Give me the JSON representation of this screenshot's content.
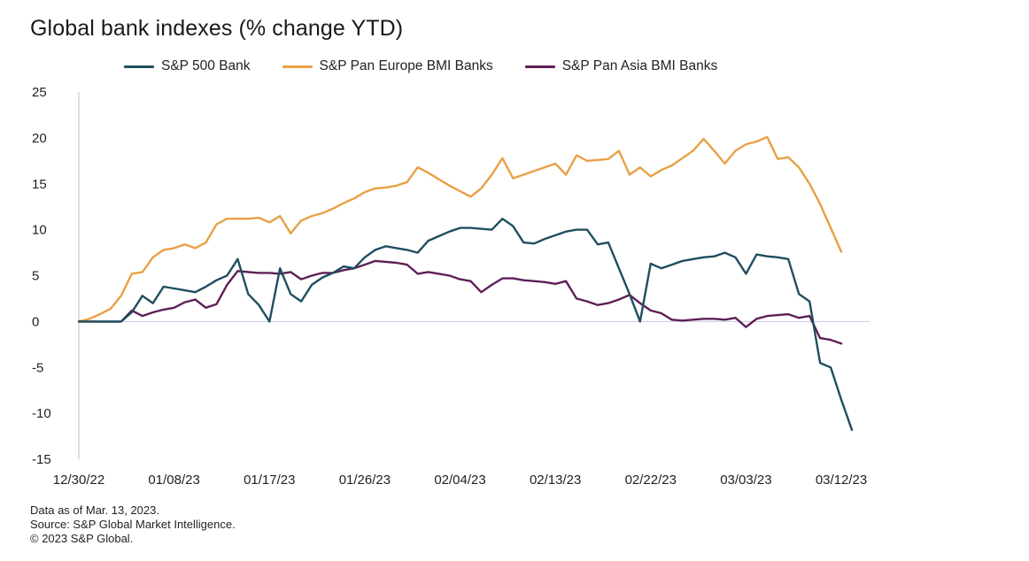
{
  "chart_data": {
    "type": "line",
    "title": "Global bank indexes (% change YTD)",
    "xlabel": "",
    "ylabel": "",
    "ylim": [
      -15,
      25
    ],
    "yticks": [
      25,
      20,
      15,
      10,
      5,
      0,
      -5,
      -10,
      -15
    ],
    "xticks": [
      "12/30/22",
      "01/08/23",
      "01/17/23",
      "01/26/23",
      "02/04/23",
      "02/13/23",
      "02/22/23",
      "03/03/23",
      "03/12/23"
    ],
    "x_day_range": [
      0,
      73
    ],
    "series": [
      {
        "name": "S&P 500 Bank",
        "color": "#1f4e5f",
        "points": [
          [
            0,
            0
          ],
          [
            3,
            0
          ],
          [
            4,
            0
          ],
          [
            5,
            1
          ],
          [
            6,
            2.8
          ],
          [
            7,
            2
          ],
          [
            8,
            3.8
          ],
          [
            9,
            3.6
          ],
          [
            10,
            3.4
          ],
          [
            11,
            3.2
          ],
          [
            12,
            3.8
          ],
          [
            13,
            4.5
          ],
          [
            14,
            5
          ],
          [
            15,
            6.8
          ],
          [
            16,
            3
          ],
          [
            17,
            1.8
          ],
          [
            18,
            0
          ],
          [
            19,
            5.8
          ],
          [
            20,
            3
          ],
          [
            21,
            2.2
          ],
          [
            22,
            4
          ],
          [
            23,
            4.8
          ],
          [
            24,
            5.3
          ],
          [
            25,
            6
          ],
          [
            26,
            5.8
          ],
          [
            27,
            7
          ],
          [
            28,
            7.8
          ],
          [
            29,
            8.2
          ],
          [
            30,
            8
          ],
          [
            31,
            7.8
          ],
          [
            32,
            7.5
          ],
          [
            33,
            8.8
          ],
          [
            34,
            9.3
          ],
          [
            35,
            9.8
          ],
          [
            36,
            10.2
          ],
          [
            37,
            10.2
          ],
          [
            38,
            10.1
          ],
          [
            39,
            10
          ],
          [
            40,
            11.2
          ],
          [
            41,
            10.4
          ],
          [
            42,
            8.6
          ],
          [
            43,
            8.5
          ],
          [
            44,
            9
          ],
          [
            45,
            9.4
          ],
          [
            46,
            9.8
          ],
          [
            47,
            10
          ],
          [
            48,
            10
          ],
          [
            49,
            8.4
          ],
          [
            50,
            8.6
          ],
          [
            51,
            5.8
          ],
          [
            52,
            3
          ],
          [
            53,
            0
          ],
          [
            54,
            6.3
          ],
          [
            55,
            5.8
          ],
          [
            56,
            6.2
          ],
          [
            57,
            6.6
          ],
          [
            58,
            6.8
          ],
          [
            59,
            7
          ],
          [
            60,
            7.1
          ],
          [
            61,
            7.5
          ],
          [
            62,
            7
          ],
          [
            63,
            5.2
          ],
          [
            64,
            7.3
          ],
          [
            65,
            7.1
          ],
          [
            66,
            7
          ],
          [
            67,
            6.8
          ],
          [
            68,
            3
          ],
          [
            69,
            2.2
          ],
          [
            70,
            -4.5
          ],
          [
            71,
            -5
          ],
          [
            72,
            -8.5
          ],
          [
            73,
            -11.8
          ]
        ]
      },
      {
        "name": "S&P Pan Europe BMI Banks",
        "color": "#e8a045",
        "points": [
          [
            0,
            0
          ],
          [
            1,
            0.3
          ],
          [
            2,
            0.8
          ],
          [
            3,
            1.4
          ],
          [
            4,
            2.8
          ],
          [
            5,
            5.2
          ],
          [
            6,
            5.4
          ],
          [
            7,
            7
          ],
          [
            8,
            7.8
          ],
          [
            9,
            8
          ],
          [
            10,
            8.4
          ],
          [
            11,
            8
          ],
          [
            12,
            8.6
          ],
          [
            13,
            10.6
          ],
          [
            14,
            11.2
          ],
          [
            15,
            11.2
          ],
          [
            16,
            11.2
          ],
          [
            17,
            11.3
          ],
          [
            18,
            10.8
          ],
          [
            19,
            11.5
          ],
          [
            20,
            9.6
          ],
          [
            21,
            11
          ],
          [
            22,
            11.5
          ],
          [
            23,
            11.8
          ],
          [
            24,
            12.3
          ],
          [
            25,
            12.9
          ],
          [
            26,
            13.4
          ],
          [
            27,
            14.1
          ],
          [
            28,
            14.5
          ],
          [
            29,
            14.6
          ],
          [
            30,
            14.8
          ],
          [
            31,
            15.2
          ],
          [
            32,
            16.8
          ],
          [
            33,
            16.2
          ],
          [
            34,
            15.5
          ],
          [
            35,
            14.8
          ],
          [
            36,
            14.2
          ],
          [
            37,
            13.6
          ],
          [
            38,
            14.5
          ],
          [
            39,
            16
          ],
          [
            40,
            17.8
          ],
          [
            41,
            15.6
          ],
          [
            42,
            16
          ],
          [
            43,
            16.4
          ],
          [
            44,
            16.8
          ],
          [
            45,
            17.2
          ],
          [
            46,
            16
          ],
          [
            47,
            18.1
          ],
          [
            48,
            17.5
          ],
          [
            49,
            17.6
          ],
          [
            50,
            17.7
          ],
          [
            51,
            18.6
          ],
          [
            52,
            16
          ],
          [
            53,
            16.8
          ],
          [
            54,
            15.8
          ],
          [
            55,
            16.5
          ],
          [
            56,
            17
          ],
          [
            57,
            17.8
          ],
          [
            58,
            18.6
          ],
          [
            59,
            19.9
          ],
          [
            60,
            18.6
          ],
          [
            61,
            17.2
          ],
          [
            62,
            18.6
          ],
          [
            63,
            19.3
          ],
          [
            64,
            19.6
          ],
          [
            65,
            20.1
          ],
          [
            66,
            17.7
          ],
          [
            67,
            17.9
          ],
          [
            68,
            16.8
          ],
          [
            69,
            15
          ],
          [
            70,
            12.8
          ],
          [
            71,
            10.2
          ],
          [
            72,
            7.6
          ]
        ]
      },
      {
        "name": "S&P Pan Asia BMI Banks",
        "color": "#5e1f56",
        "points": [
          [
            0,
            0
          ],
          [
            3,
            0
          ],
          [
            4,
            0
          ],
          [
            5,
            1.2
          ],
          [
            6,
            0.6
          ],
          [
            7,
            1
          ],
          [
            8,
            1.3
          ],
          [
            9,
            1.5
          ],
          [
            10,
            2.1
          ],
          [
            11,
            2.4
          ],
          [
            12,
            1.5
          ],
          [
            13,
            1.9
          ],
          [
            14,
            4
          ],
          [
            15,
            5.5
          ],
          [
            16,
            5.4
          ],
          [
            17,
            5.3
          ],
          [
            18,
            5.3
          ],
          [
            19,
            5.2
          ],
          [
            20,
            5.4
          ],
          [
            21,
            4.6
          ],
          [
            22,
            5
          ],
          [
            23,
            5.3
          ],
          [
            24,
            5.3
          ],
          [
            25,
            5.6
          ],
          [
            26,
            5.8
          ],
          [
            27,
            6.2
          ],
          [
            28,
            6.6
          ],
          [
            29,
            6.5
          ],
          [
            30,
            6.4
          ],
          [
            31,
            6.2
          ],
          [
            32,
            5.2
          ],
          [
            33,
            5.4
          ],
          [
            34,
            5.2
          ],
          [
            35,
            5
          ],
          [
            36,
            4.6
          ],
          [
            37,
            4.4
          ],
          [
            38,
            3.2
          ],
          [
            39,
            4
          ],
          [
            40,
            4.7
          ],
          [
            41,
            4.7
          ],
          [
            42,
            4.5
          ],
          [
            43,
            4.4
          ],
          [
            44,
            4.3
          ],
          [
            45,
            4.1
          ],
          [
            46,
            4.4
          ],
          [
            47,
            2.5
          ],
          [
            48,
            2.2
          ],
          [
            49,
            1.8
          ],
          [
            50,
            2
          ],
          [
            51,
            2.4
          ],
          [
            52,
            2.9
          ],
          [
            53,
            2
          ],
          [
            54,
            1.2
          ],
          [
            55,
            0.9
          ],
          [
            56,
            0.2
          ],
          [
            57,
            0.1
          ],
          [
            58,
            0.2
          ],
          [
            59,
            0.3
          ],
          [
            60,
            0.3
          ],
          [
            61,
            0.2
          ],
          [
            62,
            0.4
          ],
          [
            63,
            -0.6
          ],
          [
            64,
            0.3
          ],
          [
            65,
            0.6
          ],
          [
            66,
            0.7
          ],
          [
            67,
            0.8
          ],
          [
            68,
            0.4
          ],
          [
            69,
            0.6
          ],
          [
            70,
            -1.8
          ],
          [
            71,
            -2
          ],
          [
            72,
            -2.4
          ]
        ]
      }
    ]
  },
  "footer": {
    "line1": "Data as of Mar. 13, 2023.",
    "line2": "Source: S&P Global Market Intelligence.",
    "line3": "© 2023 S&P Global."
  }
}
